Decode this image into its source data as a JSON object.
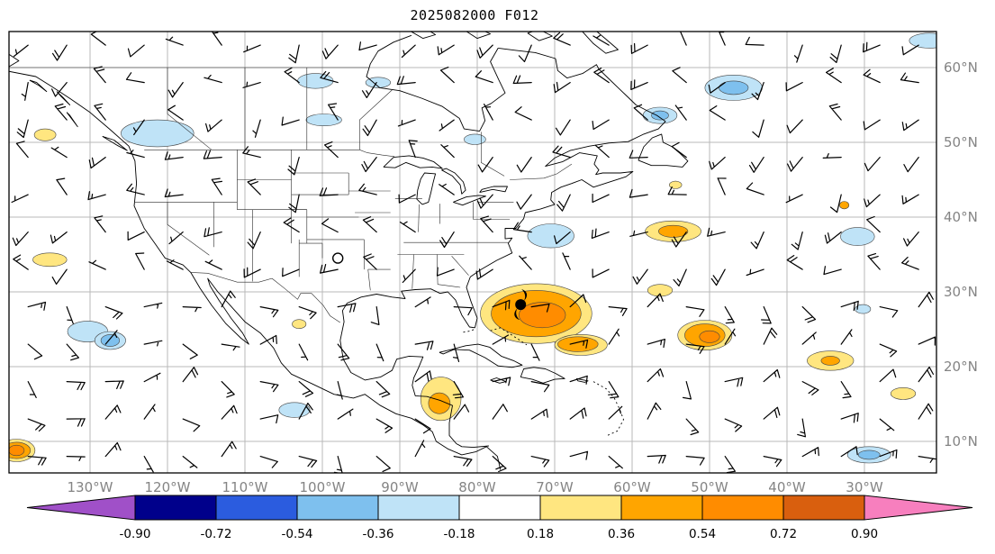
{
  "title": "2025082000 F012",
  "axes": {
    "tick_label_color": "#848484",
    "lat_labels": [
      {
        "label": "60°N",
        "value": 60
      },
      {
        "label": "50°N",
        "value": 50
      },
      {
        "label": "40°N",
        "value": 40
      },
      {
        "label": "30°N",
        "value": 30
      },
      {
        "label": "20°N",
        "value": 20
      },
      {
        "label": "10°N",
        "value": 10
      }
    ],
    "lon_labels": [
      {
        "label": "130°W",
        "value": 130
      },
      {
        "label": "120°W",
        "value": 120
      },
      {
        "label": "110°W",
        "value": 110
      },
      {
        "label": "100°W",
        "value": 100
      },
      {
        "label": "90°W",
        "value": 90
      },
      {
        "label": "80°W",
        "value": 80
      },
      {
        "label": "70°W",
        "value": 70
      },
      {
        "label": "60°W",
        "value": 60
      },
      {
        "label": "50°W",
        "value": 50
      },
      {
        "label": "40°W",
        "value": 40
      },
      {
        "label": "30°W",
        "value": 30
      }
    ]
  },
  "colorbar": {
    "tick_labels": [
      "-0.90",
      "-0.72",
      "-0.54",
      "-0.36",
      "-0.18",
      "0.18",
      "0.36",
      "0.54",
      "0.72",
      "0.90"
    ],
    "segment_colors": [
      "#00008B",
      "#2B5CDF",
      "#7EC0EE",
      "#BFE3F7",
      "#FFFFFF",
      "#FFE680",
      "#FFA500",
      "#FF8C00",
      "#D95F0E"
    ],
    "under_arrow_color": "#A050C8",
    "over_arrow_color": "#F77FBE"
  },
  "chart_data": {
    "type": "map",
    "map_title": "2025082000 F012",
    "projection": "equirectangular",
    "lon_range_deg_w": [
      140.5,
      20.7
    ],
    "lat_range_deg_n": [
      6.1,
      65.2
    ],
    "grid_lon_w": [
      130,
      120,
      110,
      100,
      90,
      80,
      70,
      60,
      50,
      40,
      30
    ],
    "grid_lat_n": [
      60,
      50,
      40,
      30,
      20,
      10
    ],
    "shading_palette": {
      "m2": "#7EC0EE",
      "m1": "#BFE3F7",
      "p1": "#FFE680",
      "p2": "#FFA500",
      "p3": "#FF8C00"
    },
    "shading_level_values": {
      "m2": "-0.54 to -0.36",
      "m1": "-0.36 to -0.18",
      "p1": "0.18 to 0.36",
      "p2": "0.36 to 0.54",
      "p3": "0.54 to 0.72"
    },
    "shaded_regions": [
      {
        "lon_w": 100.9,
        "lat_n": 58.2,
        "rx_deg": 2.3,
        "ry_deg": 1.0,
        "level": "m1"
      },
      {
        "lon_w": 46.9,
        "lat_n": 57.3,
        "rx_deg": 3.7,
        "ry_deg": 1.7,
        "level": "m1"
      },
      {
        "lon_w": 46.9,
        "lat_n": 57.3,
        "rx_deg": 1.9,
        "ry_deg": 0.9,
        "level": "m2"
      },
      {
        "lon_w": 121.3,
        "lat_n": 51.2,
        "rx_deg": 4.7,
        "ry_deg": 1.8,
        "level": "m1"
      },
      {
        "lon_w": 99.8,
        "lat_n": 53.0,
        "rx_deg": 2.3,
        "ry_deg": 0.8,
        "level": "m1"
      },
      {
        "lon_w": 80.3,
        "lat_n": 50.4,
        "rx_deg": 1.4,
        "ry_deg": 0.7,
        "level": "m1"
      },
      {
        "lon_w": 56.4,
        "lat_n": 53.6,
        "rx_deg": 2.2,
        "ry_deg": 1.1,
        "level": "m1"
      },
      {
        "lon_w": 56.4,
        "lat_n": 53.6,
        "rx_deg": 1.1,
        "ry_deg": 0.6,
        "level": "m2"
      },
      {
        "lon_w": 21.6,
        "lat_n": 63.6,
        "rx_deg": 2.6,
        "ry_deg": 1.0,
        "level": "m1"
      },
      {
        "lon_w": 70.5,
        "lat_n": 37.5,
        "rx_deg": 3.0,
        "ry_deg": 1.6,
        "level": "m1"
      },
      {
        "lon_w": 30.9,
        "lat_n": 37.4,
        "rx_deg": 2.2,
        "ry_deg": 1.2,
        "level": "m1"
      },
      {
        "lon_w": 130.3,
        "lat_n": 24.7,
        "rx_deg": 2.6,
        "ry_deg": 1.4,
        "level": "m1"
      },
      {
        "lon_w": 127.4,
        "lat_n": 23.5,
        "rx_deg": 2.0,
        "ry_deg": 1.2,
        "level": "m1"
      },
      {
        "lon_w": 127.4,
        "lat_n": 23.5,
        "rx_deg": 1.2,
        "ry_deg": 0.8,
        "level": "m2"
      },
      {
        "lon_w": 103.6,
        "lat_n": 14.2,
        "rx_deg": 2.0,
        "ry_deg": 1.0,
        "level": "m1"
      },
      {
        "lon_w": 29.4,
        "lat_n": 8.2,
        "rx_deg": 2.8,
        "ry_deg": 1.1,
        "level": "m1"
      },
      {
        "lon_w": 29.4,
        "lat_n": 8.2,
        "rx_deg": 1.4,
        "ry_deg": 0.6,
        "level": "m2"
      },
      {
        "lon_w": 92.8,
        "lat_n": 58.0,
        "rx_deg": 1.6,
        "ry_deg": 0.7,
        "level": "m1"
      },
      {
        "lon_w": 30.2,
        "lat_n": 27.7,
        "rx_deg": 1.0,
        "ry_deg": 0.6,
        "level": "m1"
      },
      {
        "lon_w": 135.8,
        "lat_n": 51.0,
        "rx_deg": 1.4,
        "ry_deg": 0.8,
        "level": "p1"
      },
      {
        "lon_w": 135.2,
        "lat_n": 34.3,
        "rx_deg": 2.2,
        "ry_deg": 0.9,
        "level": "p1"
      },
      {
        "lon_w": 72.4,
        "lat_n": 27.1,
        "rx_deg": 7.2,
        "ry_deg": 4.0,
        "level": "p1"
      },
      {
        "lon_w": 72.4,
        "lat_n": 27.1,
        "rx_deg": 5.8,
        "ry_deg": 3.1,
        "level": "p2"
      },
      {
        "lon_w": 71.6,
        "lat_n": 26.9,
        "rx_deg": 3.0,
        "ry_deg": 1.7,
        "level": "p3"
      },
      {
        "lon_w": 66.6,
        "lat_n": 22.9,
        "rx_deg": 3.4,
        "ry_deg": 1.4,
        "level": "p1"
      },
      {
        "lon_w": 67.0,
        "lat_n": 23.0,
        "rx_deg": 2.6,
        "ry_deg": 1.0,
        "level": "p2"
      },
      {
        "lon_w": 54.7,
        "lat_n": 38.1,
        "rx_deg": 3.6,
        "ry_deg": 1.4,
        "level": "p1"
      },
      {
        "lon_w": 54.7,
        "lat_n": 38.1,
        "rx_deg": 1.9,
        "ry_deg": 0.8,
        "level": "p2"
      },
      {
        "lon_w": 56.4,
        "lat_n": 30.2,
        "rx_deg": 1.6,
        "ry_deg": 0.8,
        "level": "p1"
      },
      {
        "lon_w": 50.6,
        "lat_n": 24.2,
        "rx_deg": 3.5,
        "ry_deg": 2.0,
        "level": "p1"
      },
      {
        "lon_w": 50.6,
        "lat_n": 24.2,
        "rx_deg": 2.6,
        "ry_deg": 1.5,
        "level": "p2"
      },
      {
        "lon_w": 50.0,
        "lat_n": 24.0,
        "rx_deg": 1.3,
        "ry_deg": 0.8,
        "level": "p3"
      },
      {
        "lon_w": 34.4,
        "lat_n": 20.8,
        "rx_deg": 3.0,
        "ry_deg": 1.3,
        "level": "p1"
      },
      {
        "lon_w": 34.4,
        "lat_n": 20.8,
        "rx_deg": 1.2,
        "ry_deg": 0.6,
        "level": "p2"
      },
      {
        "lon_w": 25.0,
        "lat_n": 16.4,
        "rx_deg": 1.6,
        "ry_deg": 0.8,
        "level": "p1"
      },
      {
        "lon_w": 84.7,
        "lat_n": 15.7,
        "rx_deg": 2.6,
        "ry_deg": 2.9,
        "level": "p1"
      },
      {
        "lon_w": 84.9,
        "lat_n": 15.1,
        "rx_deg": 1.4,
        "ry_deg": 1.4,
        "level": "p2"
      },
      {
        "lon_w": 139.5,
        "lat_n": 8.8,
        "rx_deg": 2.4,
        "ry_deg": 1.5,
        "level": "p1"
      },
      {
        "lon_w": 139.5,
        "lat_n": 8.8,
        "rx_deg": 1.8,
        "ry_deg": 1.1,
        "level": "p2"
      },
      {
        "lon_w": 139.5,
        "lat_n": 8.8,
        "rx_deg": 1.0,
        "ry_deg": 0.7,
        "level": "p3"
      },
      {
        "lon_w": 103.0,
        "lat_n": 25.7,
        "rx_deg": 0.9,
        "ry_deg": 0.6,
        "level": "p1"
      },
      {
        "lon_w": 54.4,
        "lat_n": 44.3,
        "rx_deg": 0.8,
        "ry_deg": 0.5,
        "level": "p1"
      },
      {
        "lon_w": 32.6,
        "lat_n": 41.6,
        "rx_deg": 0.6,
        "ry_deg": 0.5,
        "level": "p2"
      }
    ],
    "tropical_cyclone_symbol": {
      "lon_w": 74.4,
      "lat_n": 28.3
    },
    "disturbance_marker": {
      "lon_w": 98.0,
      "lat_n": 34.5
    },
    "wind_barbs": {
      "color": "#000000",
      "lon_w_start": 138,
      "lon_step_deg": 5,
      "count_lon": 24,
      "lat_n_start": 8,
      "lat_step_deg": 5,
      "count_lat": 12,
      "westerly_lat_min_n": 33,
      "westerly_dir_deg": 265,
      "easterly_dir_deg": 100,
      "jitter_deg": 150,
      "speeds_kt": [
        5,
        10,
        15,
        20
      ],
      "note": "barb directions/speeds approximated from plot"
    }
  }
}
